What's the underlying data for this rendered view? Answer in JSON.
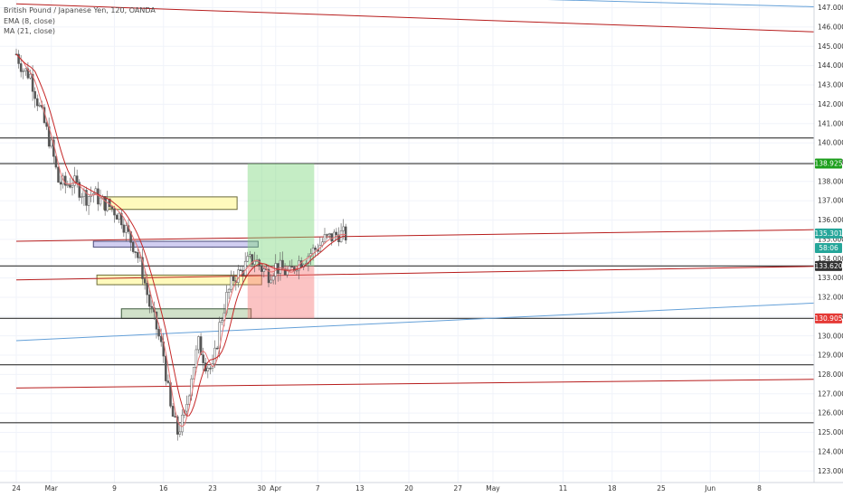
{
  "legend": {
    "symbol": "British Pound / Japanese Yen, 120, OANDA",
    "ema": "EMA (8, close)",
    "ma": "MA (21, close)"
  },
  "chart_data": {
    "type": "candlestick",
    "ylim": [
      122.4,
      147.4
    ],
    "y_ticks": [
      123,
      124,
      125,
      126,
      127,
      128,
      129,
      130,
      131,
      132,
      133,
      134,
      135,
      136,
      137,
      138,
      139,
      140,
      141,
      142,
      143,
      144,
      145,
      146,
      147
    ],
    "x_ticks": [
      {
        "label": "24",
        "day": 0
      },
      {
        "label": "Mar",
        "day": 5
      },
      {
        "label": "9",
        "day": 14
      },
      {
        "label": "16",
        "day": 21
      },
      {
        "label": "23",
        "day": 28
      },
      {
        "label": "30",
        "day": 35
      },
      {
        "label": "Apr",
        "day": 37
      },
      {
        "label": "7",
        "day": 43
      },
      {
        "label": "13",
        "day": 49
      },
      {
        "label": "20",
        "day": 56
      },
      {
        "label": "27",
        "day": 63
      },
      {
        "label": "May",
        "day": 68
      },
      {
        "label": "11",
        "day": 78
      },
      {
        "label": "18",
        "day": 85
      },
      {
        "label": "25",
        "day": 92
      },
      {
        "label": "Jun",
        "day": 99
      },
      {
        "label": "8",
        "day": 106
      }
    ],
    "series": [
      {
        "role": "price",
        "color": "#26a69a",
        "x": [
          0,
          1,
          2,
          3,
          4,
          5,
          6,
          7,
          8,
          9,
          10,
          11,
          12,
          13,
          14,
          15,
          16,
          17,
          18,
          19,
          20,
          21,
          22,
          23,
          24,
          25,
          26,
          27,
          28,
          29,
          30,
          31,
          32,
          33,
          34,
          35,
          36,
          37,
          38,
          39,
          40,
          41,
          42,
          43,
          44,
          45,
          46,
          47
        ],
        "y": [
          144.6,
          143.8,
          143.5,
          142.2,
          141.0,
          139.8,
          138.0,
          137.8,
          138.0,
          137.6,
          137.2,
          137.4,
          137.0,
          136.8,
          136.5,
          136.1,
          135.2,
          134.5,
          133.3,
          131.6,
          130.4,
          129.0,
          126.2,
          125.0,
          125.8,
          128.0,
          129.6,
          128.6,
          128.2,
          130.5,
          132.0,
          133.0,
          133.3,
          133.8,
          134.0,
          133.5,
          133.2,
          133.6,
          133.4,
          133.2,
          133.8,
          134.0,
          134.3,
          134.6,
          135.0,
          135.1,
          135.3,
          135.2
        ]
      }
    ],
    "price_label": "135.301",
    "countdown_label": "58:06",
    "lines": [
      {
        "role": "resistance",
        "color": "#333333",
        "y": [
          138.925,
          138.925
        ]
      },
      {
        "role": "support",
        "color": "#333333",
        "y": [
          140.25,
          140.25
        ]
      },
      {
        "role": "support",
        "color": "#333333",
        "y": [
          133.62,
          133.62
        ]
      },
      {
        "role": "support",
        "color": "#333333",
        "y": [
          130.905,
          130.905
        ]
      },
      {
        "role": "support",
        "color": "#333333",
        "y": [
          128.5,
          128.5
        ]
      },
      {
        "role": "support",
        "color": "#333333",
        "y": [
          125.5,
          125.5
        ]
      },
      {
        "role": "trend",
        "color": "#b71c1c",
        "x": [
          0,
          116
        ],
        "y": [
          147.2,
          145.75
        ]
      },
      {
        "role": "trend",
        "color": "#b71c1c",
        "x": [
          0,
          116
        ],
        "y": [
          134.9,
          135.5
        ]
      },
      {
        "role": "trend",
        "color": "#b71c1c",
        "x": [
          0,
          116
        ],
        "y": [
          132.9,
          133.6
        ]
      },
      {
        "role": "trend",
        "color": "#b71c1c",
        "x": [
          0,
          116
        ],
        "y": [
          127.3,
          127.75
        ]
      },
      {
        "role": "trend",
        "color": "#64a0d8",
        "x": [
          0,
          116
        ],
        "y": [
          129.75,
          131.7
        ]
      },
      {
        "role": "trend",
        "color": "#64a0d8",
        "x": [
          68,
          116
        ],
        "y": [
          147.5,
          147.05
        ]
      }
    ],
    "zones": [
      {
        "kind": "yellow",
        "x": [
          12.5,
          31.5
        ],
        "y": [
          136.55,
          137.2
        ]
      },
      {
        "kind": "purple",
        "x": [
          11.0,
          34.5
        ],
        "y": [
          134.6,
          134.9
        ]
      },
      {
        "kind": "yellow",
        "x": [
          11.5,
          35.0
        ],
        "y": [
          132.65,
          133.15
        ]
      },
      {
        "kind": "green",
        "x": [
          15.0,
          33.5
        ],
        "y": [
          130.9,
          131.4
        ]
      }
    ],
    "position": {
      "entry": 133.62,
      "target": 138.925,
      "stop": 130.905,
      "x": [
        33.0,
        42.5
      ]
    },
    "badges": [
      {
        "label": "138.925",
        "value": 138.925,
        "color": "#1b9e1b"
      },
      {
        "label": "135.301",
        "value": 135.301,
        "color": "#26a69a"
      },
      {
        "label": "58:06",
        "value": 134.55,
        "color": "#26a69a"
      },
      {
        "label": "133.620",
        "value": 133.62,
        "color": "#333333"
      },
      {
        "label": "130.905",
        "value": 130.905,
        "color": "#e53935"
      }
    ]
  }
}
